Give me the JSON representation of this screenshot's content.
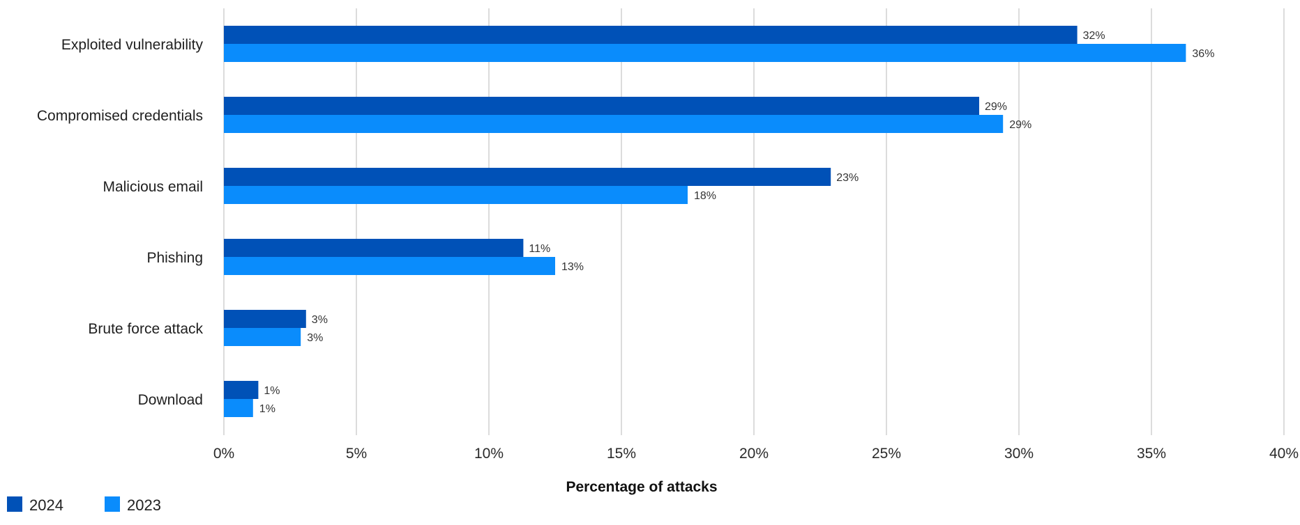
{
  "chart_data": {
    "type": "bar",
    "orientation": "horizontal",
    "categories": [
      "Exploited vulnerability",
      "Compromised credentials",
      "Malicious email",
      "Phishing",
      "Brute force attack",
      "Download"
    ],
    "series": [
      {
        "name": "2024",
        "color": "#0051b7",
        "values": [
          32.2,
          28.5,
          22.9,
          11.3,
          3.1,
          1.3
        ],
        "labels": [
          "32%",
          "29%",
          "23%",
          "11%",
          "3%",
          "1%"
        ]
      },
      {
        "name": "2023",
        "color": "#0a8cfc",
        "values": [
          36.3,
          29.4,
          17.5,
          12.5,
          2.9,
          1.1
        ],
        "labels": [
          "36%",
          "29%",
          "18%",
          "13%",
          "3%",
          "1%"
        ]
      }
    ],
    "title": "",
    "xlabel": "Percentage of attacks",
    "ylabel": "",
    "xlim": [
      0,
      40
    ],
    "xticks": [
      0,
      5,
      10,
      15,
      20,
      25,
      30,
      35,
      40
    ],
    "xtick_labels": [
      "0%",
      "5%",
      "10%",
      "15%",
      "20%",
      "25%",
      "30%",
      "35%",
      "40%"
    ],
    "grid": "vertical",
    "legend": "bottom-left"
  }
}
